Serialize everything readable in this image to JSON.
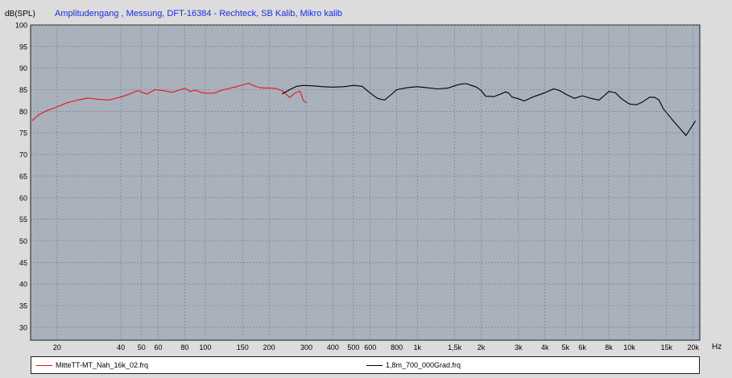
{
  "chart_data": {
    "type": "line",
    "title": "Amplitudengang , Messung, DFT-16384 - Rechteck, SB Kalib, Mikro kalib",
    "ylabel": "dB(SPL)",
    "xlabel": "Hz",
    "xscale": "log",
    "xlim": [
      15,
      21500
    ],
    "ylim": [
      27,
      100
    ],
    "yticks": [
      30,
      35,
      40,
      45,
      50,
      55,
      60,
      65,
      70,
      75,
      80,
      85,
      90,
      95,
      100
    ],
    "xticks": [
      {
        "v": 20,
        "label": "20"
      },
      {
        "v": 40,
        "label": "40"
      },
      {
        "v": 50,
        "label": "50"
      },
      {
        "v": 60,
        "label": "60"
      },
      {
        "v": 80,
        "label": "80"
      },
      {
        "v": 100,
        "label": "100"
      },
      {
        "v": 150,
        "label": "150"
      },
      {
        "v": 200,
        "label": "200"
      },
      {
        "v": 300,
        "label": "300"
      },
      {
        "v": 400,
        "label": "400"
      },
      {
        "v": 500,
        "label": "500"
      },
      {
        "v": 600,
        "label": "600"
      },
      {
        "v": 800,
        "label": "800"
      },
      {
        "v": 1000,
        "label": "1k"
      },
      {
        "v": 1500,
        "label": "1,5k"
      },
      {
        "v": 2000,
        "label": "2k"
      },
      {
        "v": 3000,
        "label": "3k"
      },
      {
        "v": 4000,
        "label": "4k"
      },
      {
        "v": 5000,
        "label": "5k"
      },
      {
        "v": 6000,
        "label": "6k"
      },
      {
        "v": 8000,
        "label": "8k"
      },
      {
        "v": 10000,
        "label": "10k"
      },
      {
        "v": 15000,
        "label": "15k"
      },
      {
        "v": 20000,
        "label": "20k"
      }
    ],
    "grid": true,
    "legend_position": "bottom",
    "series": [
      {
        "name": "MitteTT-MT_Nah_16k_02.frq",
        "color": "#e8141e",
        "x": [
          15.2,
          16.5,
          18,
          20,
          22,
          25,
          28,
          31,
          35,
          40,
          45,
          48,
          53,
          58,
          63,
          70,
          75,
          80,
          85,
          90,
          95,
          100,
          110,
          120,
          130,
          140,
          150,
          160,
          170,
          180,
          190,
          200,
          215,
          230,
          250,
          265,
          280,
          290,
          300
        ],
        "y": [
          77.8,
          79.3,
          80.2,
          81.0,
          81.9,
          82.6,
          83.1,
          82.8,
          82.6,
          83.3,
          84.2,
          84.8,
          84.0,
          85.0,
          84.8,
          84.4,
          84.9,
          85.3,
          84.6,
          84.9,
          84.4,
          84.2,
          84.2,
          84.9,
          85.3,
          85.7,
          86.1,
          86.5,
          85.9,
          85.5,
          85.4,
          85.4,
          85.3,
          84.8,
          83.2,
          84.2,
          84.7,
          82.5,
          82.0
        ]
      },
      {
        "name": "1,8m_700_000Grad.frq",
        "color": "#000000",
        "x": [
          230,
          250,
          270,
          290,
          320,
          360,
          400,
          450,
          500,
          550,
          600,
          650,
          700,
          750,
          800,
          900,
          1000,
          1100,
          1250,
          1400,
          1500,
          1600,
          1700,
          1800,
          1900,
          2000,
          2100,
          2300,
          2500,
          2600,
          2700,
          2800,
          3000,
          3200,
          3500,
          4000,
          4400,
          4700,
          5000,
          5500,
          6000,
          6600,
          7200,
          7600,
          8000,
          8600,
          9200,
          10000,
          10800,
          11500,
          12500,
          13200,
          13800,
          14500,
          15500,
          16500,
          17500,
          18500,
          19500,
          20500
        ],
        "y": [
          84.0,
          85.0,
          85.8,
          86.0,
          85.9,
          85.7,
          85.6,
          85.7,
          86.0,
          85.8,
          84.2,
          83.0,
          82.6,
          83.8,
          85.0,
          85.5,
          85.7,
          85.5,
          85.2,
          85.4,
          85.9,
          86.3,
          86.4,
          86.0,
          85.6,
          84.8,
          83.5,
          83.4,
          84.1,
          84.5,
          84.2,
          83.3,
          82.9,
          82.4,
          83.3,
          84.3,
          85.2,
          84.8,
          84.0,
          83.0,
          83.6,
          83.0,
          82.6,
          83.6,
          84.6,
          84.3,
          82.9,
          81.7,
          81.5,
          82.1,
          83.3,
          83.2,
          82.6,
          80.5,
          78.8,
          77.2,
          75.8,
          74.4,
          76.1,
          77.8
        ]
      }
    ]
  }
}
